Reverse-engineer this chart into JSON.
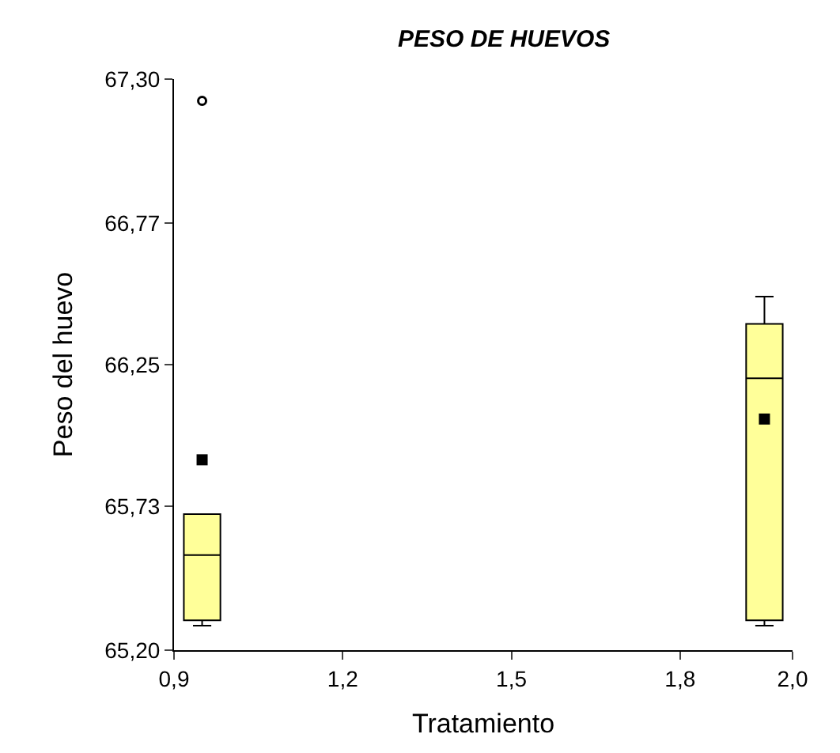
{
  "chart_data": {
    "type": "box",
    "title": "PESO DE HUEVOS",
    "xlabel": "Tratamiento",
    "ylabel": "Peso del huevo",
    "x": [
      0.95,
      1.95
    ],
    "color": "#ffff99",
    "boxes": [
      {
        "low": 65.29,
        "q1": 65.31,
        "median": 65.55,
        "q3": 65.7,
        "high": 65.7,
        "mean": 65.9,
        "outliers": [
          67.22
        ]
      },
      {
        "low": 65.29,
        "q1": 65.31,
        "median": 66.2,
        "q3": 66.4,
        "high": 66.5,
        "mean": 66.05
      }
    ],
    "xlim": [
      0.9,
      2.0
    ],
    "xticks": [
      {
        "value": 0.9,
        "label": "0,9"
      },
      {
        "value": 1.2,
        "label": "1,2"
      },
      {
        "value": 1.5,
        "label": "1,5"
      },
      {
        "value": 1.8,
        "label": "1,8"
      },
      {
        "value": 2.0,
        "label": "2,0"
      }
    ],
    "ylim": [
      65.2,
      67.3
    ],
    "yticks": [
      {
        "value": 65.2,
        "label": "65,20"
      },
      {
        "value": 65.73,
        "label": "65,73"
      },
      {
        "value": 66.25,
        "label": "66,25"
      },
      {
        "value": 66.77,
        "label": "66,77"
      },
      {
        "value": 67.3,
        "label": "67,30"
      }
    ]
  }
}
